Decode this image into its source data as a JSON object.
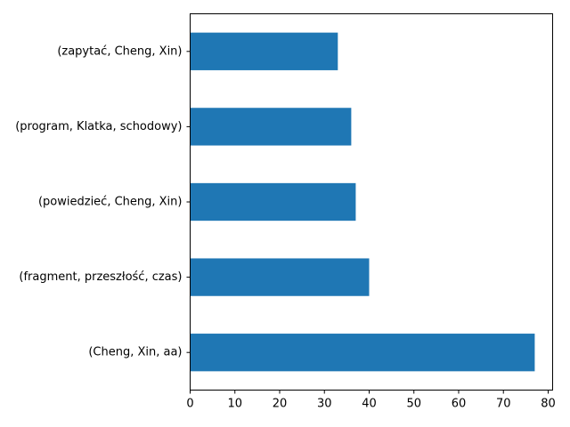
{
  "chart_data": {
    "type": "bar",
    "orientation": "horizontal",
    "categories": [
      "(Cheng, Xin, aa)",
      "(fragment, przeszłość, czas)",
      "(powiedzieć, Cheng, Xin)",
      "(program, Klatka, schodowy)",
      "(zapytać, Cheng, Xin)"
    ],
    "values": [
      77,
      40,
      37,
      36,
      33
    ],
    "xlim": [
      0,
      81
    ],
    "xticks": [
      0,
      10,
      20,
      30,
      40,
      50,
      60,
      70,
      80
    ],
    "title": "",
    "xlabel": "",
    "ylabel": "",
    "grid": false,
    "bar_color": "#1f77b4"
  }
}
